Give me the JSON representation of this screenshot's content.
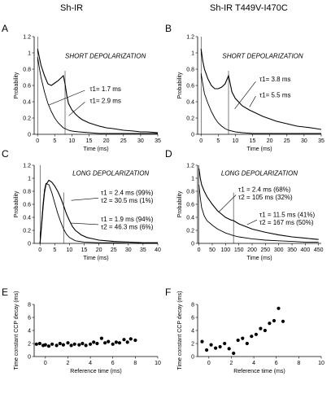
{
  "column_titles": [
    "Sh-IR",
    "Sh-IR T449V-I470C"
  ],
  "chart_data": [
    {
      "id": "A",
      "type": "line",
      "title": "SHORT DEPOLARIZATION",
      "xlabel": "Time (ms)",
      "ylabel": "Probability",
      "xlim": [
        -1,
        35
      ],
      "ylim": [
        0,
        1.2
      ],
      "xticks": [
        0,
        5,
        10,
        15,
        20,
        25,
        30,
        35
      ],
      "yticks": [
        0,
        0.2,
        0.4,
        0.6,
        0.8,
        1.0,
        1.2
      ],
      "vline": 8,
      "annotations": [
        {
          "text": "τ1= 1.7 ms"
        },
        {
          "text": "τ1= 2.9 ms"
        }
      ],
      "series": [
        {
          "x": [
            0,
            0.5,
            1,
            2,
            3,
            4,
            5,
            6,
            7,
            7.5,
            8,
            9,
            10,
            12,
            15,
            18,
            20,
            22,
            25,
            28,
            30,
            32,
            35
          ],
          "y": [
            0.95,
            0.82,
            0.7,
            0.52,
            0.38,
            0.28,
            0.2,
            0.14,
            0.1,
            0.08,
            0.07,
            0.05,
            0.04,
            0.03,
            0.02,
            0.01,
            0.01,
            0.01,
            0.01,
            0.01,
            0.01,
            0.01,
            0.01
          ]
        },
        {
          "x": [
            0,
            0.5,
            1,
            2,
            3,
            4,
            5,
            6,
            7,
            7.5,
            8,
            8.5,
            9,
            10,
            11,
            12,
            13,
            15,
            18,
            20,
            22,
            25,
            28,
            30,
            32,
            35
          ],
          "y": [
            1.05,
            0.95,
            0.85,
            0.72,
            0.62,
            0.6,
            0.63,
            0.66,
            0.7,
            0.72,
            0.62,
            0.48,
            0.38,
            0.3,
            0.25,
            0.21,
            0.18,
            0.14,
            0.1,
            0.08,
            0.07,
            0.05,
            0.04,
            0.03,
            0.03,
            0.02
          ]
        }
      ]
    },
    {
      "id": "B",
      "type": "line",
      "title": "SHORT DEPOLARIZATION",
      "xlabel": "Time (ms)",
      "ylabel": "Probability",
      "xlim": [
        -1,
        35
      ],
      "ylim": [
        0,
        1.2
      ],
      "xticks": [
        0,
        5,
        10,
        15,
        20,
        25,
        30,
        35
      ],
      "yticks": [
        0,
        0.2,
        0.4,
        0.6,
        0.8,
        1.0,
        1.2
      ],
      "vline": 8,
      "annotations": [
        {
          "text": "τ1= 3.8 ms"
        },
        {
          "text": "τ1= 5.5 ms"
        }
      ],
      "series": [
        {
          "x": [
            0,
            0.5,
            1,
            2,
            3,
            4,
            5,
            6,
            7,
            8,
            9,
            10,
            12,
            15,
            18,
            20,
            25,
            30,
            35
          ],
          "y": [
            0.75,
            0.62,
            0.5,
            0.38,
            0.28,
            0.2,
            0.14,
            0.1,
            0.07,
            0.05,
            0.04,
            0.03,
            0.02,
            0.01,
            0.01,
            0.01,
            0.01,
            0.01,
            0.01
          ]
        },
        {
          "x": [
            0,
            0.5,
            1,
            2,
            3,
            4,
            5,
            6,
            7,
            8,
            8.5,
            9,
            10,
            12,
            14,
            16,
            18,
            20,
            22,
            25,
            28,
            30,
            32,
            35
          ],
          "y": [
            1.05,
            0.9,
            0.8,
            0.68,
            0.6,
            0.56,
            0.56,
            0.58,
            0.62,
            0.72,
            0.62,
            0.52,
            0.44,
            0.35,
            0.3,
            0.26,
            0.22,
            0.19,
            0.16,
            0.13,
            0.1,
            0.09,
            0.08,
            0.06
          ]
        }
      ]
    },
    {
      "id": "C",
      "type": "line",
      "title": "LONG DEPOLARIZATION",
      "xlabel": "Time (ms)",
      "ylabel": "Probability",
      "xlim": [
        -2,
        40
      ],
      "ylim": [
        0,
        1.2
      ],
      "xticks": [
        0,
        5,
        10,
        15,
        20,
        25,
        30,
        35,
        40
      ],
      "yticks": [
        0,
        0.2,
        0.4,
        0.6,
        0.8,
        1.0,
        1.2
      ],
      "vline": 8,
      "annotations": [
        {
          "text": "τ1 = 2.4 ms  (99%)"
        },
        {
          "text": "τ2 = 30.5 ms  (1%)"
        },
        {
          "text": "τ1 = 1.9 ms  (94%)"
        },
        {
          "text": "τ2 = 46.3 ms  (6%)"
        }
      ],
      "series": [
        {
          "x": [
            0,
            0.5,
            1,
            1.5,
            2,
            3,
            4,
            5,
            6,
            7,
            8,
            9,
            10,
            12,
            15,
            20,
            25,
            30,
            35,
            40
          ],
          "y": [
            0,
            0.3,
            0.6,
            0.82,
            0.92,
            0.9,
            0.78,
            0.62,
            0.46,
            0.33,
            0.22,
            0.14,
            0.09,
            0.04,
            0.02,
            0.01,
            0.01,
            0,
            0,
            0
          ]
        },
        {
          "x": [
            0,
            0.5,
            1,
            1.5,
            2,
            3,
            4,
            5,
            6,
            7,
            8,
            9,
            10,
            11,
            12,
            14,
            16,
            18,
            20,
            25,
            30,
            35,
            40
          ],
          "y": [
            0,
            0.25,
            0.55,
            0.78,
            0.9,
            0.97,
            0.94,
            0.88,
            0.8,
            0.7,
            0.58,
            0.45,
            0.35,
            0.26,
            0.2,
            0.13,
            0.09,
            0.07,
            0.05,
            0.03,
            0.02,
            0.01,
            0.01
          ]
        }
      ]
    },
    {
      "id": "D",
      "type": "line",
      "title": "LONG DEPOLARIZATION",
      "xlabel": "Time (ms)",
      "ylabel": "Probability",
      "xlim": [
        -5,
        460
      ],
      "ylim": [
        0,
        1.2
      ],
      "xticks": [
        0,
        50,
        100,
        150,
        200,
        250,
        300,
        350,
        400,
        450
      ],
      "yticks": [
        0,
        0.2,
        0.4,
        0.6,
        0.8,
        1.0,
        1.2
      ],
      "vline": 130,
      "annotations": [
        {
          "text": "τ1 = 2.4 ms  (68%)"
        },
        {
          "text": "τ2 = 105 ms  (32%)"
        },
        {
          "text": "τ1 = 11.5 ms  (41%)"
        },
        {
          "text": "τ2 = 167  ms  (50%)"
        }
      ],
      "series": [
        {
          "x": [
            0,
            5,
            10,
            20,
            30,
            50,
            70,
            100,
            130,
            150,
            200,
            250,
            300,
            350,
            400,
            450
          ],
          "y": [
            0.9,
            0.7,
            0.55,
            0.42,
            0.35,
            0.28,
            0.22,
            0.16,
            0.12,
            0.1,
            0.07,
            0.05,
            0.04,
            0.03,
            0.02,
            0.02
          ]
        },
        {
          "x": [
            0,
            5,
            10,
            20,
            30,
            50,
            70,
            100,
            120,
            130,
            150,
            200,
            250,
            300,
            350,
            400,
            450
          ],
          "y": [
            1.15,
            1.0,
            0.9,
            0.8,
            0.72,
            0.6,
            0.5,
            0.4,
            0.36,
            0.35,
            0.3,
            0.22,
            0.17,
            0.13,
            0.1,
            0.08,
            0.06
          ]
        }
      ]
    },
    {
      "id": "E",
      "type": "scatter",
      "xlabel": "Reference time (ms)",
      "ylabel": "Time constant CCP decay   (ms)",
      "xlim": [
        -1,
        10
      ],
      "ylim": [
        0,
        8
      ],
      "xticks": [
        0,
        2,
        4,
        6,
        8,
        10
      ],
      "yticks": [
        0,
        2,
        4,
        6,
        8
      ],
      "series": [
        {
          "x": [
            -0.8,
            -0.5,
            -0.2,
            0,
            0.3,
            0.6,
            1,
            1.3,
            1.6,
            2,
            2.3,
            2.6,
            3,
            3.3,
            3.6,
            4,
            4.3,
            4.6,
            5,
            5.3,
            5.6,
            6,
            6.3,
            6.6,
            7,
            7.3,
            7.6,
            8
          ],
          "y": [
            1.9,
            2.0,
            1.7,
            1.8,
            1.6,
            1.9,
            1.7,
            2.0,
            1.8,
            2.1,
            1.7,
            1.9,
            1.8,
            2.0,
            1.7,
            1.9,
            2.2,
            2.0,
            2.8,
            2.1,
            2.3,
            1.9,
            2.2,
            2.1,
            2.6,
            2.2,
            2.7,
            2.5
          ]
        }
      ]
    },
    {
      "id": "F",
      "type": "scatter",
      "xlabel": "Reference time (ms)",
      "ylabel": "Time constant CCP decay   (ms)",
      "xlim": [
        -1,
        10
      ],
      "ylim": [
        0,
        8
      ],
      "xticks": [
        0,
        2,
        4,
        6,
        8,
        10
      ],
      "yticks": [
        0,
        2,
        4,
        6,
        8
      ],
      "series": [
        {
          "x": [
            -0.6,
            -0.2,
            0.2,
            0.6,
            1.0,
            1.4,
            1.8,
            2.2,
            2.6,
            3.0,
            3.4,
            3.8,
            4.2,
            4.6,
            5.0,
            5.4,
            5.8,
            6.2,
            6.6
          ],
          "y": [
            2.3,
            1.0,
            1.8,
            1.3,
            1.5,
            2.0,
            1.2,
            0.5,
            2.5,
            2.8,
            2.0,
            3.1,
            3.4,
            4.3,
            4.0,
            5.1,
            5.5,
            7.4,
            5.4
          ]
        }
      ]
    }
  ]
}
